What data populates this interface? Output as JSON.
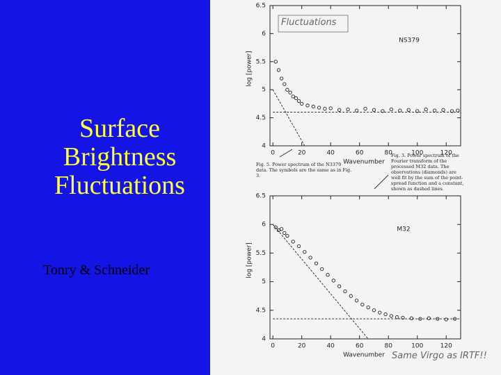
{
  "slide": {
    "title": "Surface Brightness Fluctuations",
    "author": "Tonry & Schneider"
  },
  "scan": {
    "note_top": "Fluctuations",
    "note_bottom": "Same Virgo as IRTF!!",
    "caption_left": "Fig. 5. Power spectrum of the N3379 data. The symbols are the same as in Fig. 3.",
    "caption_right": "Fig. 3. Power spectrum of the Fourier transform of the processed M32 data. The observations (diamonds) are well fit by the sum of the point-spread function and a constant, shown as dashed lines."
  },
  "chart_data": [
    {
      "type": "scatter",
      "label": "NS379",
      "x_label": "Wavenumber",
      "y_label": "log [power]",
      "xlim": [
        -2,
        130
      ],
      "ylim": [
        4,
        6.5
      ],
      "xticks": [
        0,
        20,
        40,
        60,
        80,
        100,
        120
      ],
      "yticks": [
        4,
        4.5,
        5,
        5.5,
        6,
        6.5
      ],
      "x": [
        2,
        4,
        6,
        8,
        10,
        12,
        14,
        16,
        18,
        20,
        24,
        28,
        32,
        36,
        40,
        46,
        52,
        58,
        64,
        70,
        76,
        82,
        88,
        94,
        100,
        106,
        112,
        118,
        124,
        128
      ],
      "values": [
        5.5,
        5.35,
        5.2,
        5.1,
        5.0,
        4.95,
        4.88,
        4.85,
        4.8,
        4.75,
        4.72,
        4.7,
        4.68,
        4.66,
        4.67,
        4.64,
        4.65,
        4.63,
        4.66,
        4.64,
        4.62,
        4.65,
        4.63,
        4.64,
        4.62,
        4.65,
        4.63,
        4.64,
        4.62,
        4.63
      ],
      "dashed_lines": [
        {
          "x": [
            0,
            130
          ],
          "values": [
            4.6,
            4.6
          ]
        },
        {
          "x": [
            0,
            22
          ],
          "values": [
            5.0,
            4.0
          ]
        }
      ]
    },
    {
      "type": "scatter",
      "label": "M32",
      "x_label": "Wavenumber",
      "y_label": "log [power]",
      "xlim": [
        -2,
        130
      ],
      "ylim": [
        4,
        6.5
      ],
      "xticks": [
        0,
        20,
        40,
        60,
        80,
        100,
        120
      ],
      "yticks": [
        4,
        4.5,
        5,
        5.5,
        6,
        6.5
      ],
      "x": [
        2,
        4,
        6,
        8,
        10,
        14,
        18,
        22,
        26,
        30,
        34,
        38,
        42,
        46,
        50,
        54,
        58,
        62,
        66,
        70,
        74,
        78,
        82,
        86,
        90,
        96,
        102,
        108,
        114,
        120,
        126
      ],
      "values": [
        5.95,
        5.9,
        5.92,
        5.85,
        5.8,
        5.7,
        5.62,
        5.52,
        5.42,
        5.32,
        5.22,
        5.12,
        5.02,
        4.92,
        4.83,
        4.75,
        4.67,
        4.6,
        4.55,
        4.5,
        4.46,
        4.43,
        4.4,
        4.38,
        4.37,
        4.36,
        4.35,
        4.36,
        4.35,
        4.34,
        4.35
      ],
      "dashed_lines": [
        {
          "x": [
            0,
            130
          ],
          "values": [
            4.35,
            4.35
          ]
        },
        {
          "x": [
            0,
            66
          ],
          "values": [
            6.0,
            4.0
          ]
        }
      ]
    }
  ]
}
